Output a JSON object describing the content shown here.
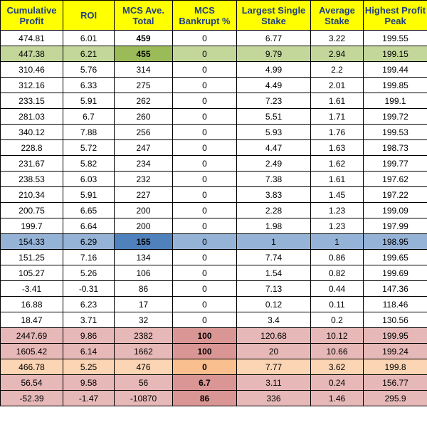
{
  "table": {
    "headers": [
      "Cumulative Profit",
      "ROI",
      "MCS Ave. Total",
      "MCS Bankrupt %",
      "Largest Single Stake",
      "Average Stake",
      "Highest Profit Peak"
    ],
    "rows": [
      {
        "cells": [
          "474.81",
          "6.01",
          "459",
          "0",
          "6.77",
          "3.22",
          "199.55"
        ],
        "style": "",
        "bold": [
          2
        ],
        "dark": []
      },
      {
        "cells": [
          "447.38",
          "6.21",
          "455",
          "0",
          "9.79",
          "2.94",
          "199.15"
        ],
        "style": "green",
        "bold": [
          2
        ],
        "dark": [
          2
        ]
      },
      {
        "cells": [
          "310.46",
          "5.76",
          "314",
          "0",
          "4.99",
          "2.2",
          "199.44"
        ],
        "style": "",
        "bold": [],
        "dark": []
      },
      {
        "cells": [
          "312.16",
          "6.33",
          "275",
          "0",
          "4.49",
          "2.01",
          "199.85"
        ],
        "style": "",
        "bold": [],
        "dark": []
      },
      {
        "cells": [
          "233.15",
          "5.91",
          "262",
          "0",
          "7.23",
          "1.61",
          "199.1"
        ],
        "style": "",
        "bold": [],
        "dark": []
      },
      {
        "cells": [
          "281.03",
          "6.7",
          "260",
          "0",
          "5.51",
          "1.71",
          "199.72"
        ],
        "style": "",
        "bold": [],
        "dark": []
      },
      {
        "cells": [
          "340.12",
          "7.88",
          "256",
          "0",
          "5.93",
          "1.76",
          "199.53"
        ],
        "style": "",
        "bold": [],
        "dark": []
      },
      {
        "cells": [
          "228.8",
          "5.72",
          "247",
          "0",
          "4.47",
          "1.63",
          "198.73"
        ],
        "style": "",
        "bold": [],
        "dark": []
      },
      {
        "cells": [
          "231.67",
          "5.82",
          "234",
          "0",
          "2.49",
          "1.62",
          "199.77"
        ],
        "style": "",
        "bold": [],
        "dark": []
      },
      {
        "cells": [
          "238.53",
          "6.03",
          "232",
          "0",
          "7.38",
          "1.61",
          "197.62"
        ],
        "style": "",
        "bold": [],
        "dark": []
      },
      {
        "cells": [
          "210.34",
          "5.91",
          "227",
          "0",
          "3.83",
          "1.45",
          "197.22"
        ],
        "style": "",
        "bold": [],
        "dark": []
      },
      {
        "cells": [
          "200.75",
          "6.65",
          "200",
          "0",
          "2.28",
          "1.23",
          "199.09"
        ],
        "style": "",
        "bold": [],
        "dark": []
      },
      {
        "cells": [
          "199.7",
          "6.64",
          "200",
          "0",
          "1.98",
          "1.23",
          "197.99"
        ],
        "style": "",
        "bold": [],
        "dark": []
      },
      {
        "cells": [
          "154.33",
          "6.29",
          "155",
          "0",
          "1",
          "1",
          "198.95"
        ],
        "style": "blue",
        "bold": [
          2
        ],
        "dark": [
          2
        ]
      },
      {
        "cells": [
          "151.25",
          "7.16",
          "134",
          "0",
          "7.74",
          "0.86",
          "199.65"
        ],
        "style": "",
        "bold": [],
        "dark": []
      },
      {
        "cells": [
          "105.27",
          "5.26",
          "106",
          "0",
          "1.54",
          "0.82",
          "199.69"
        ],
        "style": "",
        "bold": [],
        "dark": []
      },
      {
        "cells": [
          "-3.41",
          "-0.31",
          "86",
          "0",
          "7.13",
          "0.44",
          "147.36"
        ],
        "style": "",
        "bold": [],
        "dark": []
      },
      {
        "cells": [
          "16.88",
          "6.23",
          "17",
          "0",
          "0.12",
          "0.11",
          "118.46"
        ],
        "style": "",
        "bold": [],
        "dark": []
      },
      {
        "cells": [
          "18.47",
          "3.71",
          "32",
          "0",
          "3.4",
          "0.2",
          "130.56"
        ],
        "style": "",
        "bold": [],
        "dark": []
      },
      {
        "cells": [
          "2447.69",
          "9.86",
          "2382",
          "100",
          "120.68",
          "10.12",
          "199.95"
        ],
        "style": "pink",
        "bold": [
          3
        ],
        "dark": [
          3
        ]
      },
      {
        "cells": [
          "1605.42",
          "6.14",
          "1662",
          "100",
          "20",
          "10.66",
          "199.24"
        ],
        "style": "pink",
        "bold": [
          3
        ],
        "dark": [
          3
        ]
      },
      {
        "cells": [
          "466.78",
          "5.25",
          "476",
          "0",
          "7.77",
          "3.62",
          "199.8"
        ],
        "style": "peach",
        "bold": [
          3
        ],
        "dark": [
          3
        ]
      },
      {
        "cells": [
          "56.54",
          "9.58",
          "56",
          "6.7",
          "3.11",
          "0.24",
          "156.77"
        ],
        "style": "pink",
        "bold": [
          3
        ],
        "dark": [
          3
        ]
      },
      {
        "cells": [
          "-52.39",
          "-1.47",
          "-10870",
          "86",
          "336",
          "1.46",
          "295.9"
        ],
        "style": "pink",
        "bold": [
          3
        ],
        "dark": [
          3
        ]
      }
    ]
  },
  "colors": {
    "header_background": "#ffff00",
    "header_text": "#1f3f7f",
    "green_row": "#c4d79b",
    "green_highlight": "#9bbb59",
    "blue_row": "#95b3d7",
    "blue_highlight": "#4f81bd",
    "pink_row": "#e6b8b7",
    "pink_highlight": "#da9694",
    "peach_row": "#fcd5b4",
    "peach_highlight": "#fabf8f"
  }
}
